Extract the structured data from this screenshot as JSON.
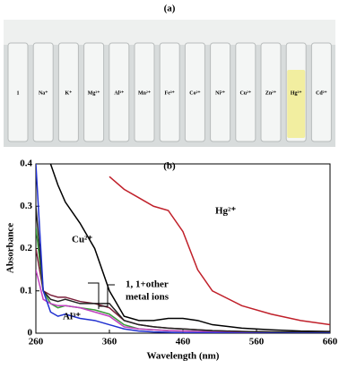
{
  "panel_a": {
    "label": "(a)",
    "vials": [
      {
        "label": "1"
      },
      {
        "label": "Na⁺"
      },
      {
        "label": "K⁺"
      },
      {
        "label": "Mg²⁺"
      },
      {
        "label": "Al³⁺"
      },
      {
        "label": "Mn²⁺"
      },
      {
        "label": "Fe³⁺"
      },
      {
        "label": "Co²⁺"
      },
      {
        "label": "Ni²⁺"
      },
      {
        "label": "Cu²⁺"
      },
      {
        "label": "Zn²⁺"
      },
      {
        "label": "Hg²⁺",
        "color": "#f2eea0"
      },
      {
        "label": "Cd²⁺"
      }
    ]
  },
  "chart_data": {
    "type": "line",
    "title": "(b)",
    "x_label": "Wavelength (nm)",
    "y_label": "Absorbance",
    "annotations": [
      "Hg²⁺",
      "Cu²⁺",
      "1, 1+other",
      "metal ions",
      "Al³⁺"
    ],
    "x": [
      260,
      270,
      280,
      290,
      300,
      320,
      340,
      360,
      380,
      400,
      420,
      440,
      460,
      480,
      500,
      540,
      580,
      620,
      660
    ],
    "series": [
      {
        "color": "#c0202a",
        "values": [
          null,
          null,
          null,
          null,
          null,
          null,
          null,
          0.37,
          0.34,
          0.32,
          0.3,
          0.29,
          0.24,
          0.15,
          0.1,
          0.065,
          0.045,
          0.03,
          0.02
        ]
      },
      {
        "color": "#000000",
        "values": [
          null,
          null,
          0.4,
          0.35,
          0.31,
          0.26,
          0.2,
          0.1,
          0.04,
          0.03,
          0.03,
          0.035,
          0.035,
          0.03,
          0.02,
          0.012,
          0.008,
          0.005,
          0.004
        ]
      },
      {
        "color": "#7a1f3a",
        "values": [
          0.2,
          0.1,
          0.09,
          0.085,
          0.085,
          0.075,
          0.07,
          0.06,
          0.03,
          0.02,
          0.015,
          0.012,
          0.01,
          0.008,
          0.006,
          0.004,
          0.003,
          0.002,
          0.002
        ]
      },
      {
        "color": "#3a9a3a",
        "values": [
          0.25,
          0.1,
          0.07,
          0.06,
          0.065,
          0.06,
          0.055,
          0.045,
          0.02,
          0.01,
          0.008,
          0.006,
          0.005,
          0.004,
          0.003,
          0.002,
          0.002,
          0.001,
          0.001
        ]
      },
      {
        "color": "#c040c0",
        "values": [
          0.15,
          0.08,
          0.07,
          0.065,
          0.065,
          0.06,
          0.05,
          0.04,
          0.015,
          0.01,
          0.008,
          0.006,
          0.005,
          0.004,
          0.003,
          0.002,
          0.002,
          0.001,
          0.001
        ]
      },
      {
        "color": "#222222",
        "values": [
          0.3,
          0.1,
          0.08,
          0.075,
          0.08,
          0.07,
          0.07,
          0.07,
          0.03,
          0.02,
          0.015,
          0.012,
          0.01,
          0.008,
          0.006,
          0.004,
          0.003,
          0.002,
          0.002
        ]
      },
      {
        "color": "#2030d0",
        "values": [
          0.4,
          0.1,
          0.05,
          0.04,
          0.045,
          0.035,
          0.03,
          0.02,
          0.01,
          0.005,
          0.003,
          0.002,
          0.001,
          0.001,
          0.001,
          0,
          0,
          0,
          0
        ]
      }
    ],
    "xlim": [
      260,
      660
    ],
    "ylim": [
      0,
      0.4
    ],
    "xticks": [
      260,
      360,
      460,
      560,
      660
    ],
    "yticks": [
      0,
      0.1,
      0.2,
      0.3,
      0.4
    ]
  }
}
